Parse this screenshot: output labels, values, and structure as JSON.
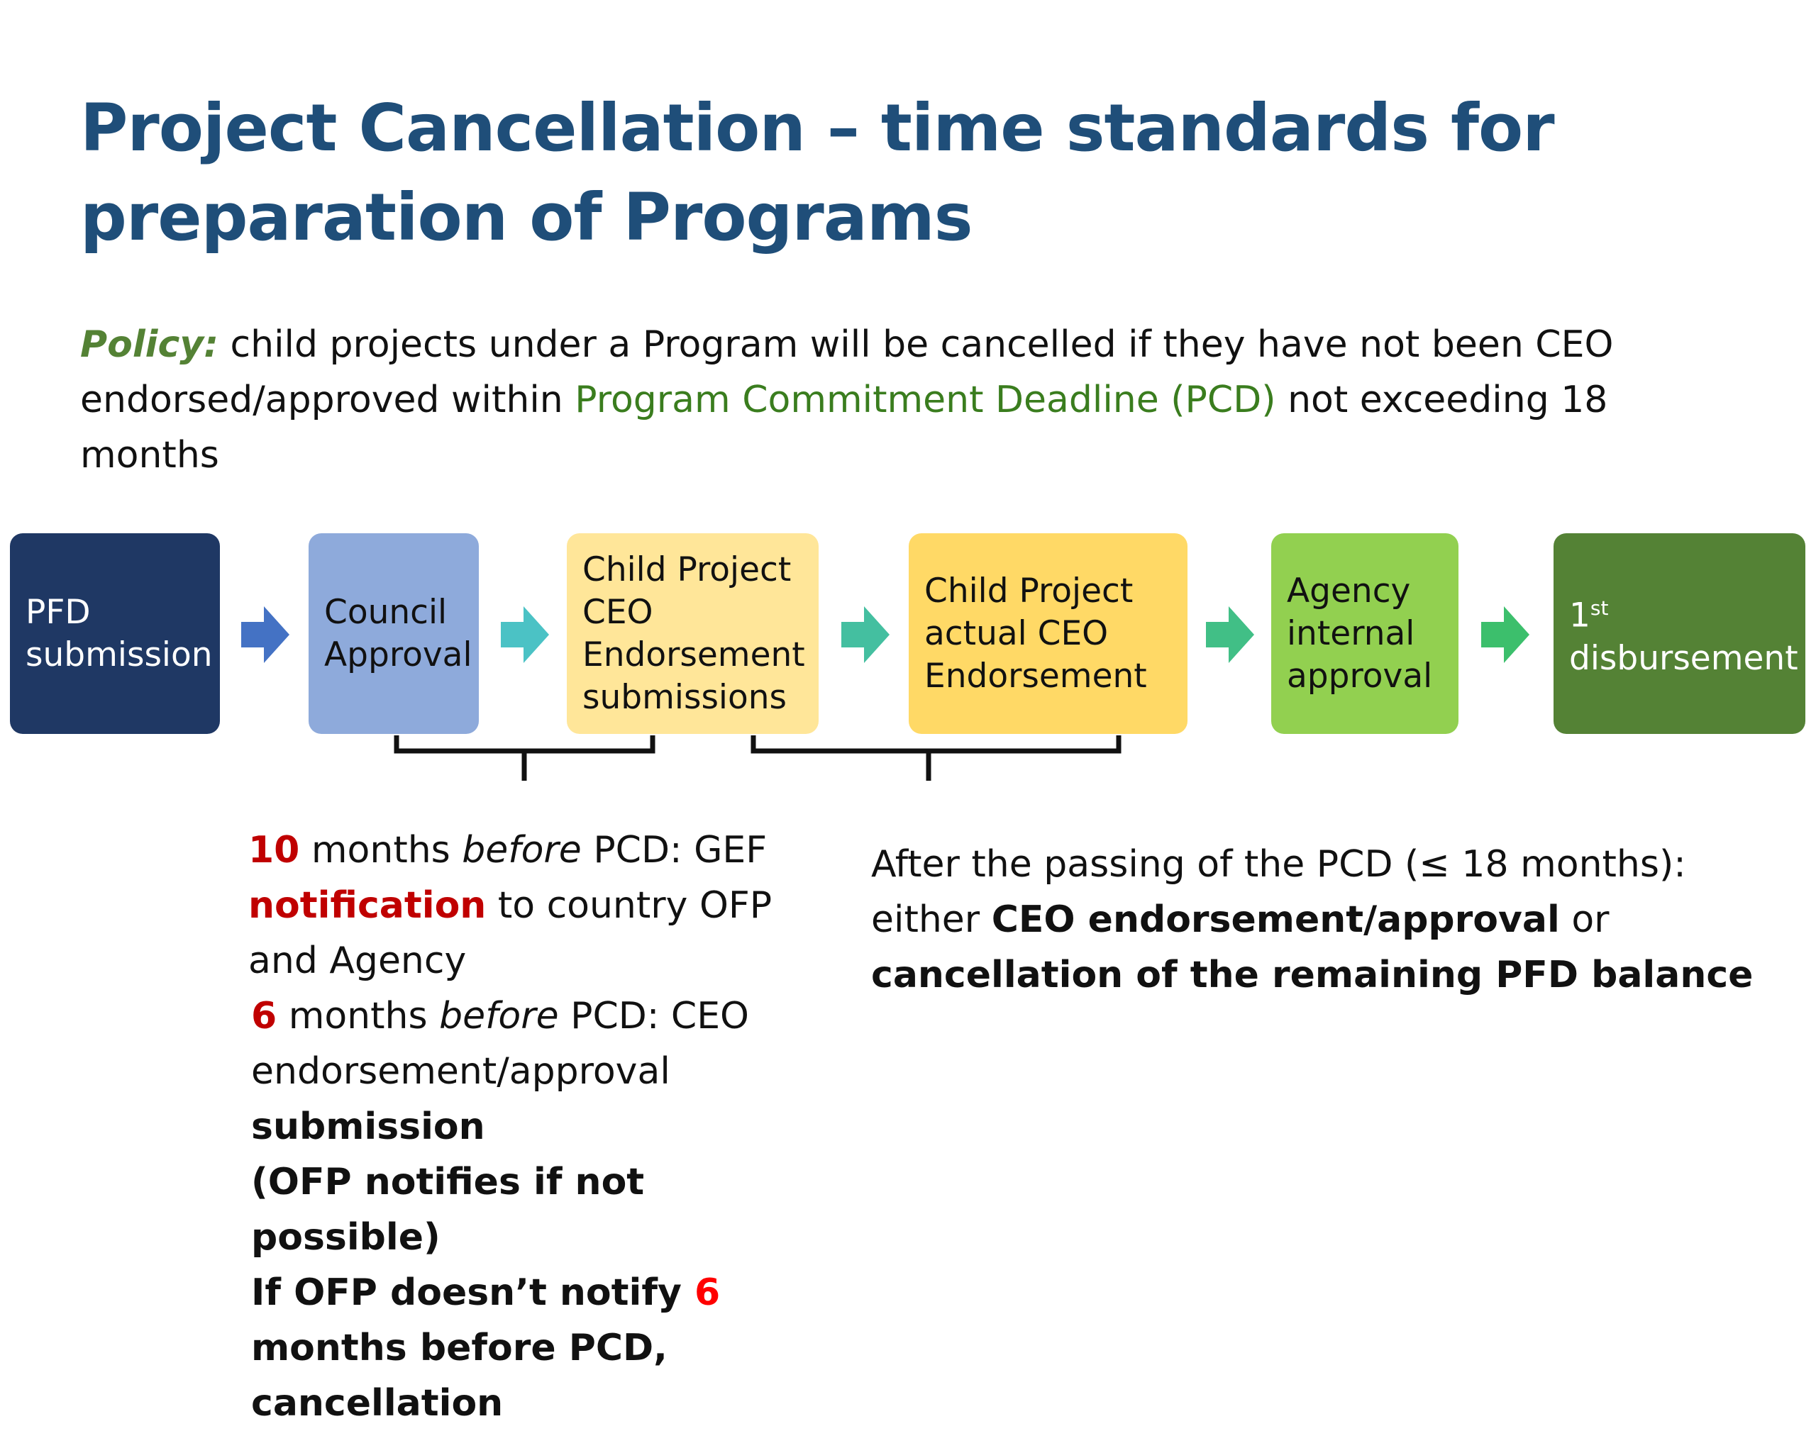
{
  "slide": {
    "title_line1": "Project Cancellation – time standards for",
    "title_line2": "preparation of Programs",
    "policy": {
      "label": "Policy:",
      "text1": " child projects under a Program will be cancelled if they have not been CEO endorsed/approved within ",
      "pcd": "Program Commitment Deadline (PCD)",
      "text2": " not exceeding 18 months"
    }
  },
  "flow": {
    "steps": [
      {
        "label": "PFD\nsubmission",
        "color": "#1f3864",
        "text_color": "#ffffff"
      },
      {
        "label": "Council\nApproval",
        "color": "#8eaadb",
        "text_color": "#111111"
      },
      {
        "label": "Child Project\nCEO\nEndorsement\nsubmissions",
        "color": "#ffe699",
        "text_color": "#111111"
      },
      {
        "label": "Child Project\nactual CEO\nEndorsement",
        "color": "#ffd966",
        "text_color": "#111111"
      },
      {
        "label": "Agency\ninternal\napproval",
        "color": "#92d050",
        "text_color": "#111111"
      },
      {
        "label": "disbursement",
        "sup_prefix": "1",
        "sup": "st",
        "color": "#548235",
        "text_color": "#ffffff"
      }
    ],
    "arrow_colors": [
      "#4472c4",
      "#4bc2c5",
      "#44bfa0",
      "#41bf86",
      "#3cbf6c"
    ]
  },
  "notes": {
    "left": {
      "n10": "10",
      "t1": " months ",
      "before1": "before",
      "t2": " PCD: GEF ",
      "notification": "notification",
      "t3": " to country OFP and Agency",
      "n6": "6",
      "t4": " months ",
      "before2": "before",
      "t5": " PCD: CEO endorsement/approval",
      "submission": "submission",
      "ofp_note": "(OFP notifies if not possible)",
      "if_ofp": "If OFP doesn’t notify ",
      "n6b": "6",
      "months_before": "months before PCD,",
      "cancellation": "cancellation"
    },
    "right": {
      "t1": "After the passing of the PCD (≤ 18 months): either ",
      "bold1": "CEO endorsement/approval",
      "t2": " or ",
      "bold2": "cancellation of the remaining PFD balance"
    }
  }
}
